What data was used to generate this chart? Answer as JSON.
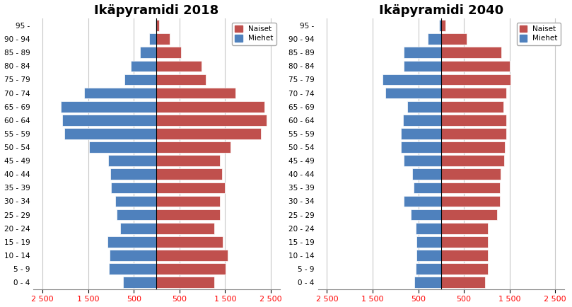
{
  "age_groups": [
    "0 - 4",
    "5 - 9",
    "10 - 14",
    "15 - 19",
    "20 - 24",
    "25 - 29",
    "30 - 34",
    "35 - 39",
    "40 - 44",
    "45 - 49",
    "50 - 54",
    "55 - 59",
    "60 - 64",
    "65 - 69",
    "70 - 74",
    "75 - 79",
    "80 - 84",
    "85 - 89",
    "90 - 94",
    "95 -"
  ],
  "title2018": "Ikäpyramidi 2018",
  "title2040": "Ikäpyramidi 2040",
  "legend_naiset": "Naiset",
  "legend_miehet": "Miehet",
  "color_naiset": "#C0504D",
  "color_miehet": "#4F81BD",
  "xlim": 2700,
  "xtick_positions": [
    -2500,
    -1500,
    -500,
    500,
    1500,
    2500
  ],
  "xtick_labels": [
    "2 500",
    "1 500",
    "500",
    "500",
    "1 500",
    "2 500"
  ],
  "data2018_naiset": [
    1270,
    1510,
    1550,
    1450,
    1270,
    1380,
    1390,
    1490,
    1440,
    1390,
    1620,
    2280,
    2410,
    2370,
    1720,
    1070,
    990,
    530,
    290,
    50
  ],
  "data2018_miehet": [
    730,
    1050,
    1030,
    1070,
    800,
    880,
    900,
    1000,
    1020,
    1060,
    1480,
    2020,
    2070,
    2100,
    1580,
    710,
    560,
    360,
    160,
    30
  ],
  "data2040_naiset": [
    960,
    1020,
    1020,
    1020,
    1030,
    1230,
    1290,
    1280,
    1300,
    1380,
    1390,
    1420,
    1420,
    1360,
    1430,
    1520,
    1500,
    1320,
    560,
    100
  ],
  "data2040_miehet": [
    580,
    560,
    540,
    540,
    560,
    660,
    820,
    600,
    640,
    820,
    880,
    880,
    840,
    740,
    1220,
    1280,
    820,
    820,
    300,
    50
  ],
  "background_color": "#FFFFFF",
  "grid_color": "#C8C8C8",
  "title_fontsize": 13,
  "label_fontsize": 7.5,
  "tick_fontsize": 8
}
